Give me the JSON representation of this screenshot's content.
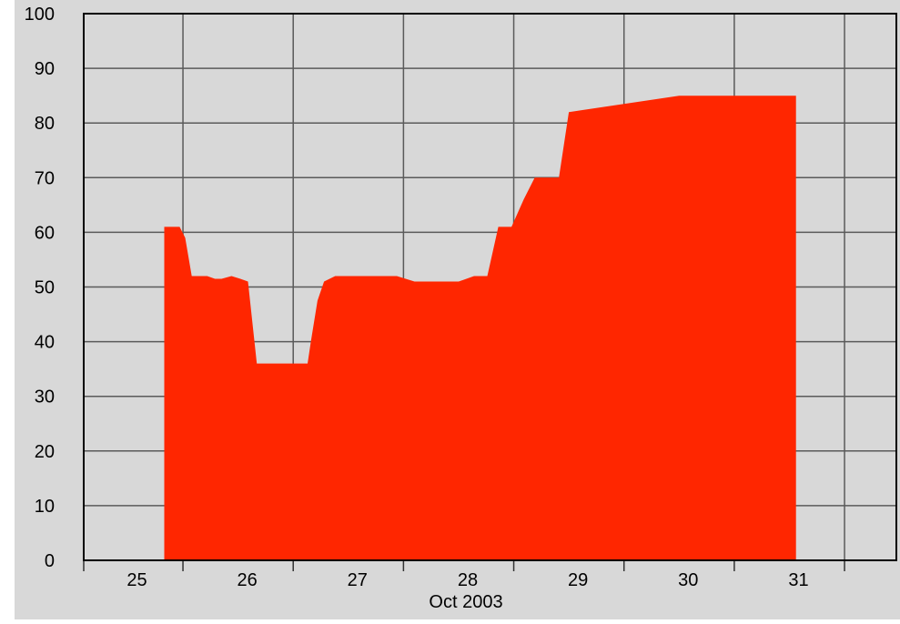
{
  "chart_data": {
    "type": "area",
    "title": "",
    "xlabel": "Oct 2003",
    "ylabel": "",
    "x_ticks": [
      "25",
      "26",
      "27",
      "28",
      "29",
      "30",
      "31"
    ],
    "y_ticks": [
      0,
      10,
      20,
      30,
      40,
      50,
      60,
      70,
      80,
      90,
      100
    ],
    "xlim": [
      24.6,
      31.97
    ],
    "ylim": [
      0,
      100
    ],
    "grid": true,
    "colors": {
      "area": "#ff2600",
      "plot_background": "#d8d8d8",
      "grid": "#5a5a5a",
      "axis": "#000000"
    },
    "series": [
      {
        "x": [
          25.33,
          25.33,
          25.47,
          25.52,
          25.58,
          25.72,
          25.79,
          25.85,
          25.94,
          26.02,
          26.09,
          26.17,
          26.25,
          26.33,
          26.55,
          26.63,
          26.66,
          26.72,
          26.78,
          26.88,
          27.05,
          27.25,
          27.44,
          27.52,
          27.6,
          27.75,
          27.92,
          28.0,
          28.14,
          28.19,
          28.26,
          28.36,
          28.48,
          28.59,
          28.69,
          28.74,
          28.79,
          28.91,
          29.0,
          30.0,
          31.0,
          31.06,
          31.06
        ],
        "y": [
          0,
          61,
          61,
          59,
          52,
          52,
          51.5,
          51.5,
          52,
          51.5,
          51,
          36,
          36,
          36,
          36,
          36,
          40,
          47.5,
          51,
          52,
          52,
          52,
          52,
          51.5,
          51,
          51,
          51,
          51,
          52,
          52,
          52,
          61,
          61,
          66,
          70,
          70,
          70,
          70,
          82,
          85,
          85,
          85,
          0
        ]
      }
    ]
  }
}
